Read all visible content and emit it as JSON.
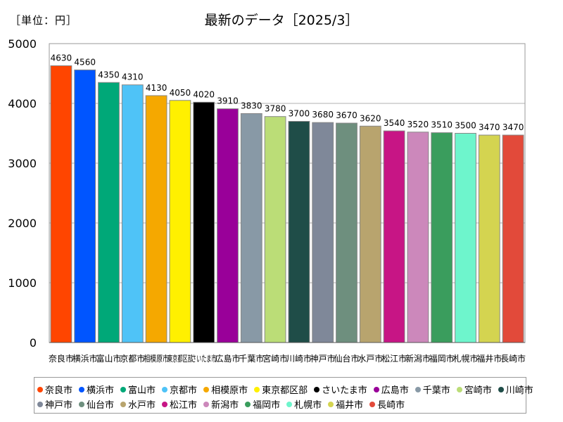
{
  "unit_label": "［単位：円］",
  "chart_data": {
    "type": "bar",
    "title": "最新のデータ［2025/3］",
    "xlabel": "",
    "ylabel": "",
    "ylim": [
      0,
      5000
    ],
    "yticks": [
      0,
      1000,
      2000,
      3000,
      4000,
      5000
    ],
    "grid": true,
    "legend_position": "bottom",
    "categories": [
      "奈良市",
      "横浜市",
      "富山市",
      "京都市",
      "相模原市",
      "東京都区部",
      "さいたま市",
      "広島市",
      "千葉市",
      "宮崎市",
      "川崎市",
      "神戸市",
      "仙台市",
      "水戸市",
      "松江市",
      "新潟市",
      "福岡市",
      "札幌市",
      "福井市",
      "長崎市"
    ],
    "values": [
      4630,
      4560,
      4350,
      4310,
      4130,
      4050,
      4020,
      3910,
      3830,
      3780,
      3700,
      3680,
      3670,
      3620,
      3540,
      3520,
      3510,
      3500,
      3470,
      3470
    ],
    "colors": [
      "#FF4500",
      "#0055FF",
      "#00A878",
      "#4FC3F7",
      "#F5A800",
      "#FFF000",
      "#000000",
      "#990099",
      "#8899A6",
      "#BBDD77",
      "#1F4D48",
      "#7F8899",
      "#6E8F7E",
      "#B8A46E",
      "#C71585",
      "#CC88BB",
      "#3A9D5D",
      "#6EF5CC",
      "#D4D450",
      "#E24A3A"
    ]
  }
}
